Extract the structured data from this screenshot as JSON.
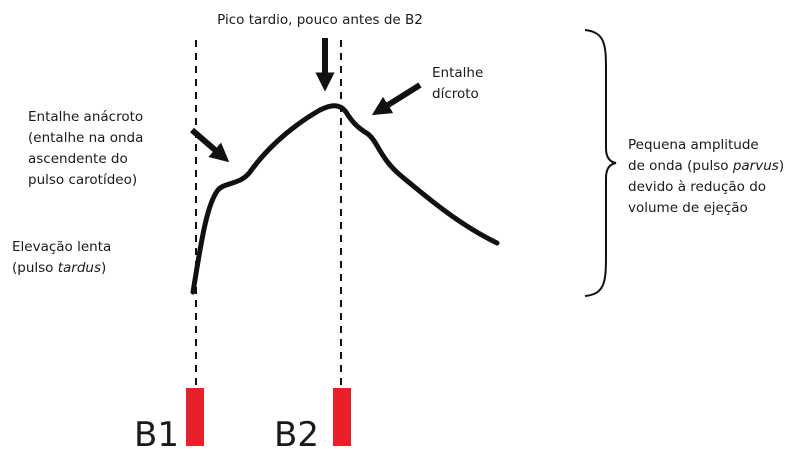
{
  "peak_label": "Pico tardio, pouco antes de B2",
  "dicrotic_notch": {
    "lines": [
      "Entalhe",
      "dícroto"
    ]
  },
  "anacrotic_notch": {
    "lines": [
      "Entalhe anácroto",
      "(entalhe na onda",
      "ascendente do",
      "pulso carotídeo)"
    ]
  },
  "slow_rise": {
    "line1": "Elevação lenta",
    "line2": {
      "before": "(pulso ",
      "italic": "tardus",
      "after": ")"
    }
  },
  "small_amplitude": {
    "line1": "Pequena amplitude",
    "line2": {
      "before": "de onda (pulso ",
      "italic": "parvus",
      "after": ")"
    },
    "line3": "devido à redução do",
    "line4": "volume de ejeção"
  },
  "markers": [
    "B1",
    "B2"
  ]
}
